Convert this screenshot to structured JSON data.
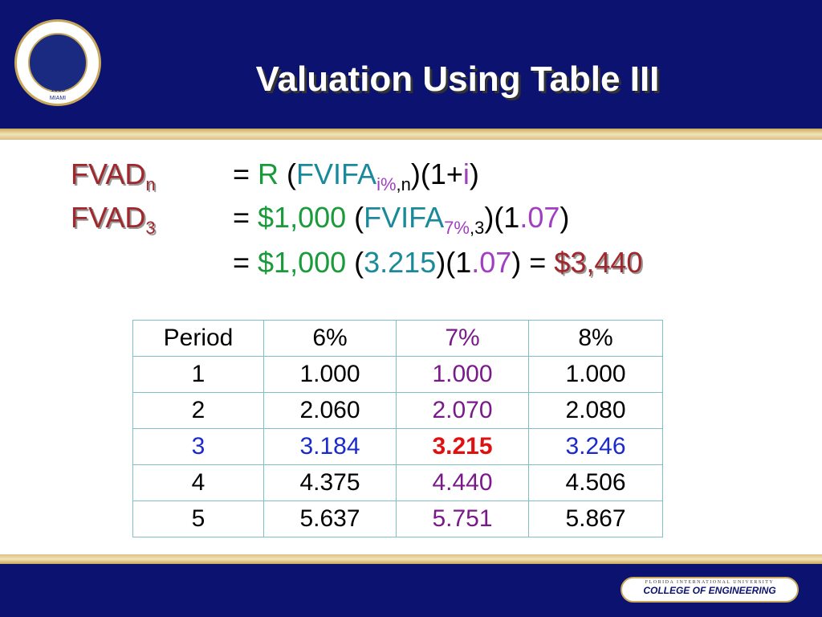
{
  "header": {
    "title": "Valuation Using Table III",
    "logo": {
      "year": "1965",
      "city": "MIAMI"
    }
  },
  "formula": {
    "lines": [
      {
        "label": {
          "text": "FVAD",
          "sub": "n"
        },
        "parts": [
          {
            "text": "= ",
            "color": "#000000"
          },
          {
            "text": "R",
            "color": "#1a9a3a"
          },
          {
            "text": " (",
            "color": "#000000"
          },
          {
            "text": "FVIFA",
            "color": "#1a8a9a"
          },
          {
            "sub": "i%",
            "color": "#a040c0"
          },
          {
            "sub": ",n",
            "color": "#000000"
          },
          {
            "text": ")(1+",
            "color": "#000000"
          },
          {
            "text": "i",
            "color": "#a040c0"
          },
          {
            "text": ")",
            "color": "#000000"
          }
        ]
      },
      {
        "label": {
          "text": "FVAD",
          "sub": "3"
        },
        "parts": [
          {
            "text": "= ",
            "color": "#000000"
          },
          {
            "text": "$1,000",
            "color": "#1a9a3a"
          },
          {
            "text": " (",
            "color": "#000000"
          },
          {
            "text": "FVIFA",
            "color": "#1a8a9a"
          },
          {
            "sub": "7%",
            "color": "#a040c0"
          },
          {
            "sub": ",3",
            "color": "#000000"
          },
          {
            "text": ")(1",
            "color": "#000000"
          },
          {
            "text": ".07",
            "color": "#a040c0"
          },
          {
            "text": ")",
            "color": "#000000"
          }
        ]
      },
      {
        "parts": [
          {
            "text": "= ",
            "color": "#000000"
          },
          {
            "text": "$1,000",
            "color": "#1a9a3a"
          },
          {
            "text": " (",
            "color": "#000000"
          },
          {
            "text": "3.215",
            "color": "#1a8a9a"
          },
          {
            "text": ")(1",
            "color": "#000000"
          },
          {
            "text": ".07",
            "color": "#a040c0"
          },
          {
            "text": ") = ",
            "color": "#000000"
          },
          {
            "text": "$3,440",
            "color": "#a0282d",
            "emphasis": true
          }
        ]
      }
    ]
  },
  "table": {
    "header": [
      "Period",
      "6%",
      "7%",
      "8%"
    ],
    "rows": [
      [
        "1",
        "1.000",
        "1.000",
        "1.000"
      ],
      [
        "2",
        "2.060",
        "2.070",
        "2.080"
      ],
      [
        "3",
        "3.184",
        "3.215",
        "3.246"
      ],
      [
        "4",
        "4.375",
        "4.440",
        "4.506"
      ],
      [
        "5",
        "5.637",
        "5.751",
        "5.867"
      ]
    ]
  },
  "footer": {
    "university": "FLORIDA INTERNATIONAL UNIVERSITY",
    "college": "COLLEGE OF ENGINEERING"
  }
}
